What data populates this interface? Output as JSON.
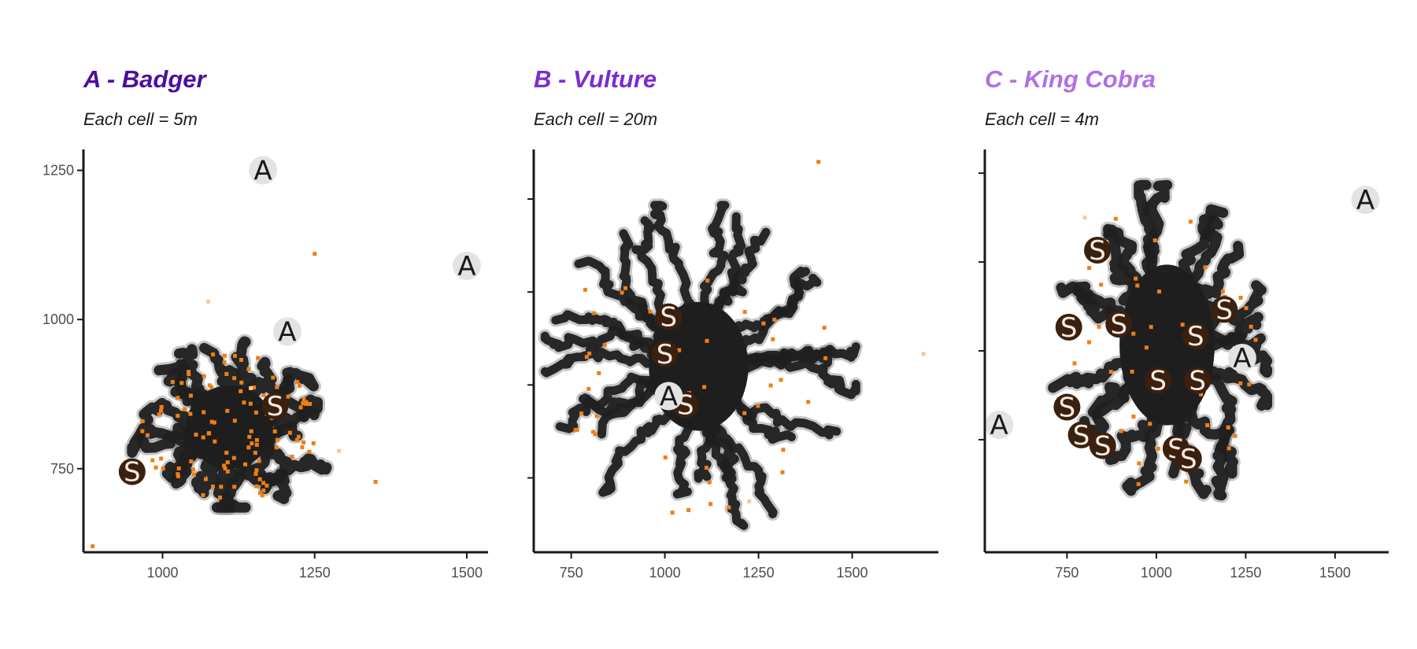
{
  "colors": {
    "title_a": "#4b0f9e",
    "title_b": "#7b2cd1",
    "title_c": "#b070e6",
    "track": "#1f1f1f",
    "points": "#f07f14",
    "points_faint": "#f9c79a",
    "settlement_fill": "#3b2010",
    "settlement_text": "#f4eadf",
    "activity_fill": "#e3e3e3",
    "activity_text": "#1a1a1a",
    "axis": "#1a1a1a"
  },
  "chart_data": [
    {
      "type": "scatter",
      "title": "A - Badger",
      "subtitle": "Each cell = 5m",
      "xlim": [
        870,
        1535
      ],
      "ylim": [
        610,
        1285
      ],
      "x_ticks": [
        1000,
        1250,
        1500
      ],
      "y_ticks": [
        750,
        1000,
        1250
      ],
      "show_y_tick_labels": true,
      "grid": false,
      "track_extent": {
        "x": [
          950,
          1275
        ],
        "y": [
          685,
          975
        ]
      },
      "track_center": [
        1110,
        820
      ],
      "settlements": [
        {
          "label": "S",
          "x": 950,
          "y": 745
        },
        {
          "label": "S",
          "x": 1185,
          "y": 855
        }
      ],
      "activity_points": [
        {
          "label": "A",
          "x": 1165,
          "y": 1250
        },
        {
          "label": "A",
          "x": 1500,
          "y": 1090
        },
        {
          "label": "A",
          "x": 1205,
          "y": 980
        }
      ],
      "outlier_points": [
        {
          "x": 1350,
          "y": 728
        },
        {
          "x": 1290,
          "y": 780
        },
        {
          "x": 1250,
          "y": 1110
        },
        {
          "x": 1145,
          "y": 885
        },
        {
          "x": 885,
          "y": 620
        },
        {
          "x": 1075,
          "y": 1030
        },
        {
          "x": 1155,
          "y": 790
        }
      ]
    },
    {
      "type": "scatter",
      "title": "B - Vulture",
      "subtitle": "Each cell = 20m",
      "xlim": [
        650,
        1730
      ],
      "ylim": [
        580,
        1230
      ],
      "x_ticks": [
        750,
        1000,
        1250,
        1500
      ],
      "y_ticks": [
        700,
        850,
        1000,
        1150
      ],
      "show_y_tick_labels": false,
      "grid": false,
      "track_extent": {
        "x": [
          680,
          1510
        ],
        "y": [
          620,
          1140
        ]
      },
      "track_center": [
        1090,
        880
      ],
      "settlements": [
        {
          "label": "S",
          "x": 1010,
          "y": 960
        },
        {
          "label": "S",
          "x": 1000,
          "y": 900
        },
        {
          "label": "S",
          "x": 1055,
          "y": 818
        }
      ],
      "activity_points": [
        {
          "label": "A",
          "x": 1010,
          "y": 832
        }
      ],
      "outlier_points": [
        {
          "x": 1410,
          "y": 1210
        },
        {
          "x": 1690,
          "y": 900
        },
        {
          "x": 1020,
          "y": 644
        },
        {
          "x": 1225,
          "y": 662
        }
      ]
    },
    {
      "type": "scatter",
      "title": "C - King Cobra",
      "subtitle": "Each cell = 4m",
      "xlim": [
        520,
        1650
      ],
      "ylim": [
        610,
        1290
      ],
      "x_ticks": [
        750,
        1000,
        1250,
        1500
      ],
      "y_ticks": [
        800,
        950,
        1100,
        1250
      ],
      "show_y_tick_labels": false,
      "grid": false,
      "track_extent": {
        "x": [
          705,
          1310
        ],
        "y": [
          665,
          1230
        ]
      },
      "track_center": [
        1030,
        960
      ],
      "settlements": [
        {
          "label": "S",
          "x": 835,
          "y": 1120
        },
        {
          "label": "S",
          "x": 1190,
          "y": 1020
        },
        {
          "label": "S",
          "x": 755,
          "y": 990
        },
        {
          "label": "S",
          "x": 895,
          "y": 995
        },
        {
          "label": "S",
          "x": 1110,
          "y": 975
        },
        {
          "label": "S",
          "x": 1005,
          "y": 900
        },
        {
          "label": "S",
          "x": 1115,
          "y": 900
        },
        {
          "label": "S",
          "x": 750,
          "y": 855
        },
        {
          "label": "S",
          "x": 790,
          "y": 808
        },
        {
          "label": "S",
          "x": 850,
          "y": 790
        },
        {
          "label": "S",
          "x": 1055,
          "y": 785
        },
        {
          "label": "S",
          "x": 1090,
          "y": 768
        }
      ],
      "activity_points": [
        {
          "label": "A",
          "x": 1585,
          "y": 1205
        },
        {
          "label": "A",
          "x": 1240,
          "y": 938
        },
        {
          "label": "A",
          "x": 560,
          "y": 825
        }
      ],
      "outlier_points": [
        {
          "x": 950,
          "y": 725
        },
        {
          "x": 800,
          "y": 1175
        }
      ]
    }
  ]
}
